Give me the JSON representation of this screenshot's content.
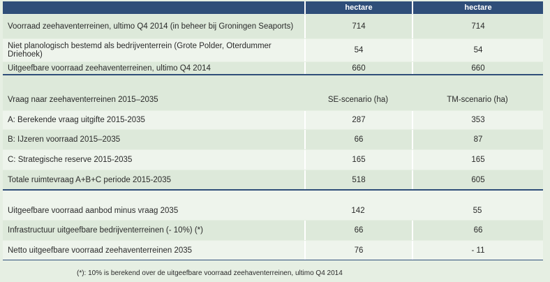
{
  "header": {
    "col1": "",
    "col2": "hectare",
    "col3": "hectare"
  },
  "rows": [
    {
      "label": "Voorraad zeehaventerreinen, ultimo Q4 2014 (in beheer bij Groningen Seaports)",
      "v1": "714",
      "v2": "714"
    },
    {
      "label": "Niet planologisch bestemd als bedrijventerrein (Grote Polder, Oterdummer Driehoek)",
      "v1": "54",
      "v2": "54"
    },
    {
      "label": "Uitgeefbare voorraad zeehaventerreinen, ultimo Q4 2014",
      "v1": "660",
      "v2": "660"
    },
    {
      "label": "Vraag naar zeehaventerreinen 2015–2035",
      "v1": "SE-scenario (ha)",
      "v2": "TM-scenario (ha)"
    },
    {
      "label": "A: Berekende vraag uitgifte 2015-2035",
      "v1": "287",
      "v2": "353"
    },
    {
      "label": "B: IJzeren voorraad 2015–2035",
      "v1": "66",
      "v2": "87"
    },
    {
      "label": "C: Strategische reserve 2015-2035",
      "v1": "165",
      "v2": "165"
    },
    {
      "label": "Totale ruimtevraag A+B+C periode 2015-2035",
      "v1": "518",
      "v2": "605"
    },
    {
      "label": "Uitgeefbare voorraad aanbod minus vraag 2035",
      "v1": "142",
      "v2": "55"
    },
    {
      "label": "Infrastructuur uitgeefbare bedrijventerreinen (- 10%) (*)",
      "v1": "66",
      "v2": "66"
    },
    {
      "label": "Netto uitgeefbare voorraad zeehaventerreinen 2035",
      "v1": "76",
      "v2": "- 11"
    }
  ],
  "footnote": "(*): 10% is berekend over de uitgeefbare voorraad zeehaventerreinen, ultimo Q4 2014"
}
